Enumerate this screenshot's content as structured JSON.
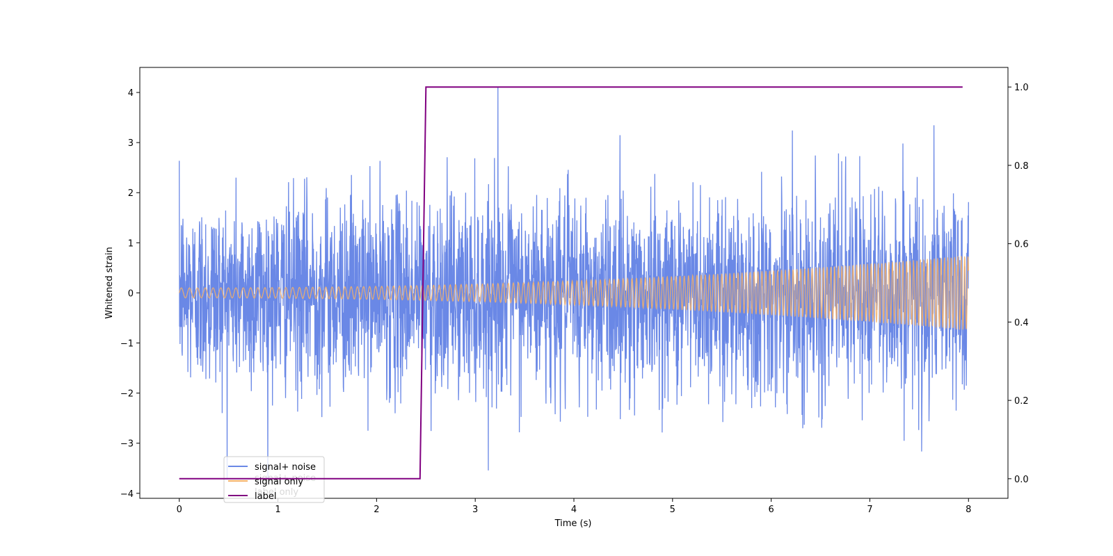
{
  "chart_data": {
    "type": "line",
    "title": "",
    "xlabel": "Time (s)",
    "ylabel": "Whitened strain",
    "y2label": "",
    "xlim": [
      -0.4,
      8.4
    ],
    "ylim": [
      -4.1,
      4.5
    ],
    "y2lim": [
      -0.05,
      1.05
    ],
    "xticks": [
      0,
      1,
      2,
      3,
      4,
      5,
      6,
      7,
      8
    ],
    "yticks": [
      -4,
      -3,
      -2,
      -1,
      0,
      1,
      2,
      3,
      4
    ],
    "y2ticks": [
      0.0,
      0.2,
      0.4,
      0.6,
      0.8,
      1.0
    ],
    "xtick_labels": [
      "0",
      "1",
      "2",
      "3",
      "4",
      "5",
      "6",
      "7",
      "8"
    ],
    "ytick_labels": [
      "−4",
      "−3",
      "−2",
      "−1",
      "0",
      "1",
      "2",
      "3",
      "4"
    ],
    "y2tick_labels": [
      "0.0",
      "0.2",
      "0.4",
      "0.6",
      "0.8",
      "1.0"
    ],
    "grid": false,
    "legend_position": "bottom-left",
    "series": [
      {
        "name": "signal+ noise",
        "color": "#6a88e6",
        "axis": "left",
        "kind": "noisy chirp",
        "x_range": [
          0,
          8
        ],
        "noise_std": 0.95,
        "observed_min": -3.7,
        "observed_max": 4.1
      },
      {
        "name": "signal only",
        "color": "#f5b067",
        "axis": "left",
        "kind": "chirp",
        "x_range": [
          0,
          8
        ],
        "amplitude_start": 0.1,
        "amplitude_end": 0.75
      },
      {
        "name": "label",
        "color": "#800080",
        "axis": "right",
        "kind": "step",
        "x": [
          0,
          2.44,
          2.5,
          7.94
        ],
        "values": [
          0,
          0,
          1,
          1
        ]
      }
    ],
    "ghost_legend_labels": [
      "signal+ noise",
      "label only"
    ]
  }
}
